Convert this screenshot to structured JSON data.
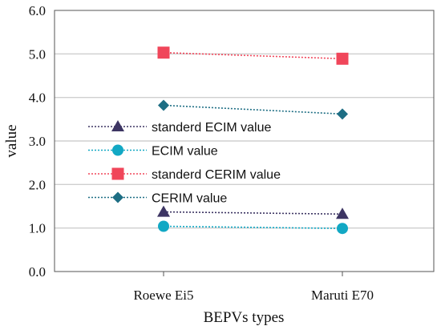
{
  "chart_data": {
    "type": "line",
    "categories": [
      "Roewe Ei5",
      "Maruti E70"
    ],
    "xlabel": "BEPVs types",
    "ylabel": "value",
    "ylim": [
      0,
      6
    ],
    "yticks": [
      "0.0",
      "1.0",
      "2.0",
      "3.0",
      "4.0",
      "5.0",
      "6.0"
    ],
    "grid": "horizontal",
    "legend": "left-middle",
    "series": [
      {
        "name": "standerd ECIM value",
        "values": [
          1.37,
          1.32
        ],
        "color": "#3d3563",
        "marker": "triangle"
      },
      {
        "name": "ECIM value",
        "values": [
          1.04,
          0.99
        ],
        "color": "#12a8c4",
        "marker": "circle"
      },
      {
        "name": "standerd CERIM value",
        "values": [
          5.03,
          4.89
        ],
        "color": "#f0465a",
        "marker": "square"
      },
      {
        "name": "CERIM value",
        "values": [
          3.82,
          3.62
        ],
        "color": "#1e6e84",
        "marker": "diamond"
      }
    ]
  }
}
